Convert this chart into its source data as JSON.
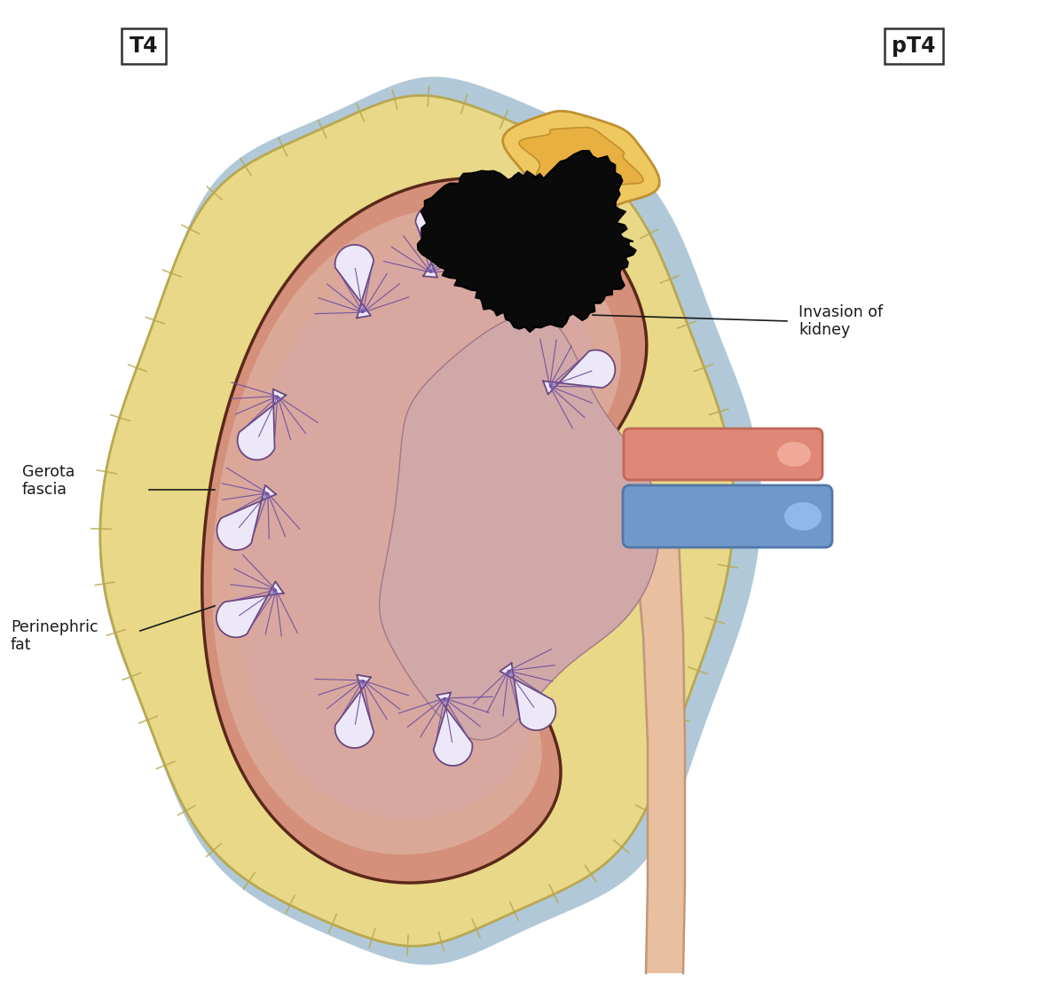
{
  "title_left": "T4",
  "title_right": "pT4",
  "label_invasion": "Invasion of\nkidney",
  "label_gerota": "Gerota\nfascia",
  "label_perinephric": "Perinephric\nfat",
  "colors": {
    "background": "#ffffff",
    "gerota_outer_border": "#b8a850",
    "gerota_fill": "#e8d888",
    "blue_layer": "#b0c8d8",
    "kidney_cortex": "#d4907a",
    "kidney_medulla_outer": "#dca898",
    "kidney_medulla_inner": "#c8909a",
    "renal_sinus": "#c8a0a0",
    "renal_pelvis": "#d0b0b8",
    "calyx_fill": "#ece8f8",
    "calyx_border": "#6a4880",
    "calyx_stripe": "#7050a0",
    "adrenal_fill": "#f0c860",
    "adrenal_border": "#c09030",
    "adrenal_inner": "#e8b040",
    "tumor_fill": "#0a0a0a",
    "tumor_border": "#000000",
    "artery_fill": "#e08878",
    "artery_border": "#c06858",
    "artery_inner": "#f0a898",
    "vein_fill": "#7098c8",
    "vein_border": "#5078a8",
    "vein_inner": "#90b8e8",
    "ureter_fill": "#e8c0a0",
    "ureter_border": "#c09878",
    "hilum_fill": "#d4a888",
    "line_color": "#222222",
    "text_color": "#1a1a1a",
    "box_border": "#333333"
  },
  "fig_width": 11.88,
  "fig_height": 11.17
}
